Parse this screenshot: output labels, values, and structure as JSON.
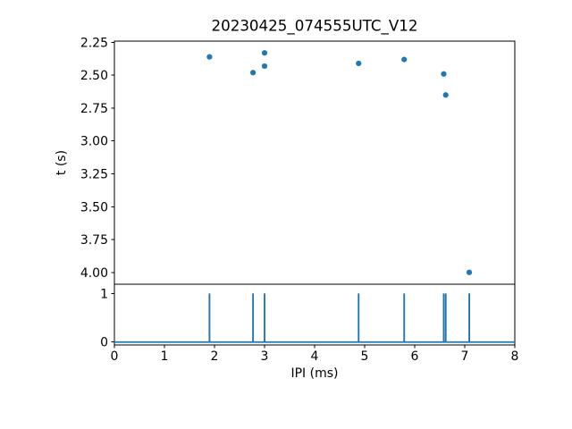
{
  "figure": {
    "title": "20230425_074555UTC_V12",
    "xlabel": "IPI (ms)",
    "ylabel": "t (s)"
  },
  "chart_data": {
    "type": "scatter",
    "title": "20230425_074555UTC_V12",
    "xlabel": "IPI (ms)",
    "xlim": [
      0,
      8
    ],
    "xticks": [
      "0",
      "1",
      "2",
      "3",
      "4",
      "5",
      "6",
      "7",
      "8"
    ],
    "grid": false,
    "legend": "none",
    "marker_color": "#1f77b4",
    "panels": [
      {
        "name": "t-vs-ipi-scatter",
        "ylabel": "t (s)",
        "y_inverted": true,
        "ylim": [
          2.24,
          4.09
        ],
        "yticks": [
          "2.25",
          "2.50",
          "2.75",
          "3.00",
          "3.25",
          "3.50",
          "3.75",
          "4.00"
        ],
        "points": [
          {
            "x": 1.9,
            "y": 2.36
          },
          {
            "x": 2.77,
            "y": 2.48
          },
          {
            "x": 3.0,
            "y": 2.33
          },
          {
            "x": 3.0,
            "y": 2.43
          },
          {
            "x": 4.88,
            "y": 2.41
          },
          {
            "x": 5.79,
            "y": 2.38
          },
          {
            "x": 6.58,
            "y": 2.49
          },
          {
            "x": 6.62,
            "y": 2.65
          },
          {
            "x": 7.09,
            "y": 4.0
          }
        ]
      },
      {
        "name": "ipi-event-spikes",
        "y_inverted": false,
        "ylim": [
          -0.06,
          1.19
        ],
        "yticks": [
          "0",
          "1"
        ],
        "spike_x": [
          1.9,
          2.77,
          3.0,
          4.88,
          5.79,
          6.58,
          6.62,
          7.09
        ],
        "spike_height": 1,
        "baseline_y": 0
      }
    ]
  }
}
